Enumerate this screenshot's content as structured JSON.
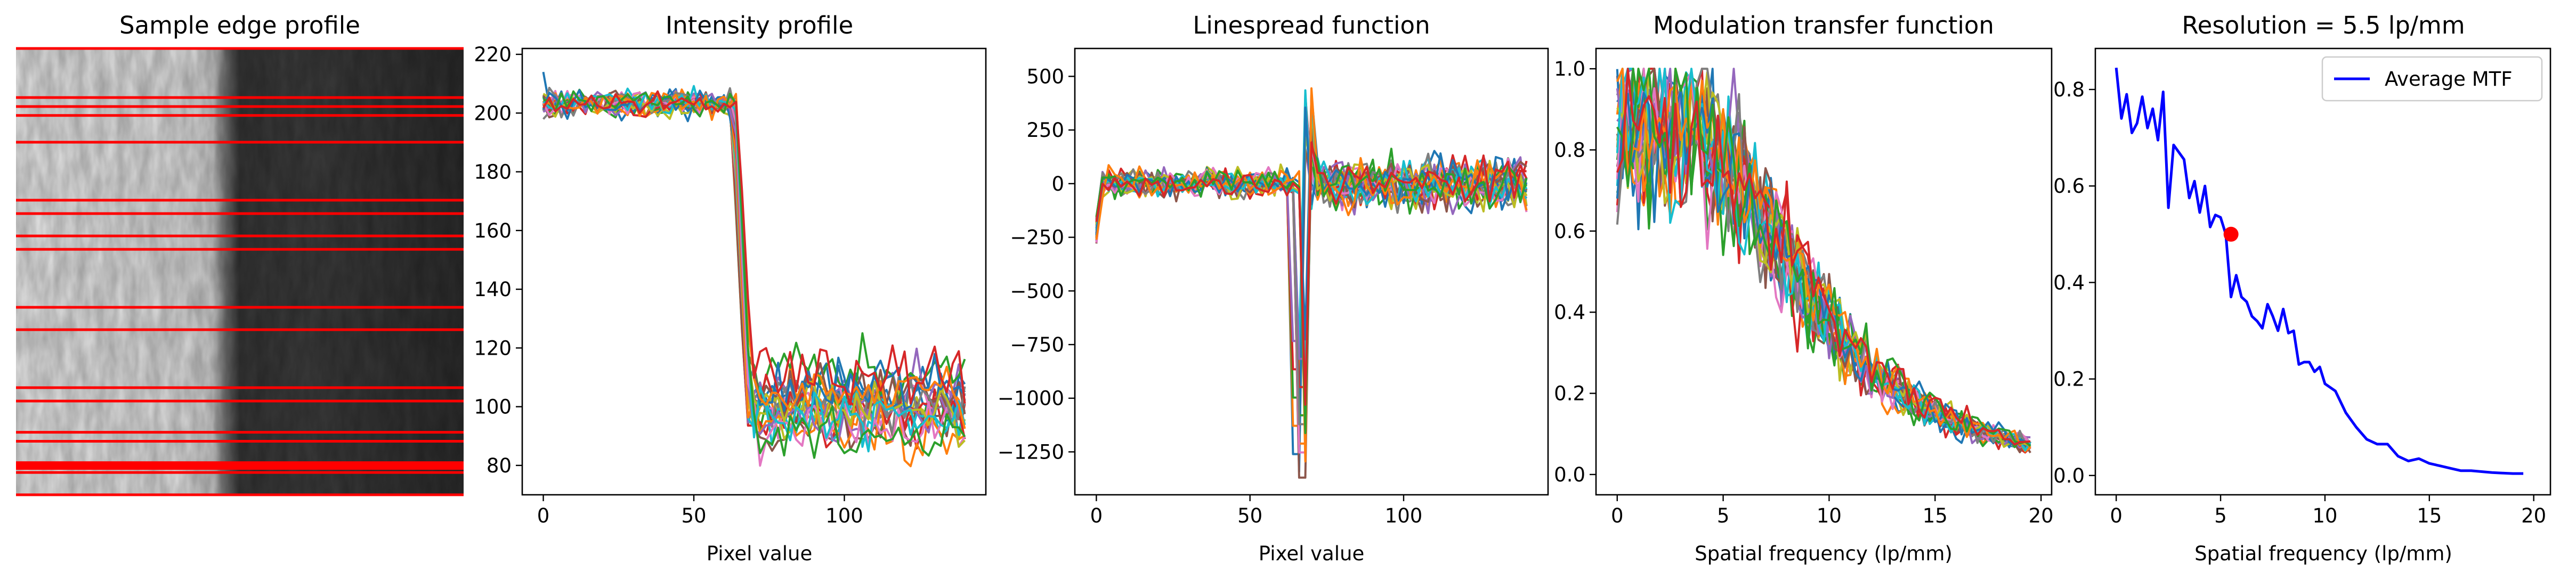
{
  "colors": {
    "cycle": [
      "#1f77b4",
      "#ff7f0e",
      "#2ca02c",
      "#d62728",
      "#9467bd",
      "#8c564b",
      "#e377c2",
      "#7f7f7f",
      "#bcbd22",
      "#17becf"
    ],
    "edge_line": "#ff0000",
    "average_mtf": "#0000ff",
    "resolution_marker": "#ff0000"
  },
  "chart_data": [
    {
      "type": "image",
      "title": "Sample edge profile",
      "description_lines": "grayscale edge image with horizontal red sample lines",
      "sample_line_fractions": [
        0.0,
        0.11,
        0.13,
        0.15,
        0.21,
        0.34,
        0.37,
        0.42,
        0.45,
        0.58,
        0.63,
        0.76,
        0.79,
        0.86,
        0.88,
        0.93,
        0.94,
        0.95,
        1.0
      ]
    },
    {
      "type": "line",
      "title": "Intensity profile",
      "xlabel": "Pixel value",
      "ylabel": "",
      "xlim": [
        -7,
        147
      ],
      "ylim": [
        70,
        222
      ],
      "xticks": [
        "0",
        "50",
        "100"
      ],
      "xtick_values": [
        0,
        50,
        100
      ],
      "yticks": [
        "80",
        "100",
        "120",
        "140",
        "160",
        "180",
        "200",
        "220"
      ],
      "ytick_values": [
        80,
        100,
        120,
        140,
        160,
        180,
        200,
        220
      ],
      "n_series": 24,
      "x_range": [
        0,
        140
      ],
      "high_level": 203,
      "low_level": 100,
      "edge_positions": [
        60,
        75
      ]
    },
    {
      "type": "line",
      "title": "Linespread function",
      "xlabel": "Pixel value",
      "ylabel": "",
      "xlim": [
        -7,
        147
      ],
      "ylim": [
        -1450,
        630
      ],
      "xticks": [
        "0",
        "50",
        "100"
      ],
      "xtick_values": [
        0,
        50,
        100
      ],
      "yticks": [
        "500",
        "250",
        "0",
        "−250",
        "−500",
        "−750",
        "−1000",
        "−1250"
      ],
      "ytick_values": [
        500,
        250,
        0,
        -250,
        -500,
        -750,
        -1000,
        -1250
      ],
      "n_series": 24,
      "peak_min": -1370,
      "peak_max": 500
    },
    {
      "type": "line",
      "title": "Modulation transfer function",
      "xlabel": "Spatial frequency (lp/mm)",
      "ylabel": "",
      "xlim": [
        -1,
        20.5
      ],
      "ylim": [
        -0.05,
        1.05
      ],
      "xticks": [
        "0",
        "5",
        "10",
        "15",
        "20"
      ],
      "xtick_values": [
        0,
        5,
        10,
        15,
        20
      ],
      "yticks": [
        "0.0",
        "0.2",
        "0.4",
        "0.6",
        "0.8",
        "1.0"
      ],
      "ytick_values": [
        0,
        0.2,
        0.4,
        0.6,
        0.8,
        1.0
      ],
      "n_series": 24
    },
    {
      "type": "line",
      "title": "Resolution = 5.5 lp/mm",
      "xlabel": "Spatial frequency (lp/mm)",
      "ylabel": "",
      "xlim": [
        -1,
        20.8
      ],
      "ylim": [
        -0.04,
        0.885
      ],
      "xticks": [
        "0",
        "5",
        "10",
        "15",
        "20"
      ],
      "xtick_values": [
        0,
        5,
        10,
        15,
        20
      ],
      "yticks": [
        "0.0",
        "0.2",
        "0.4",
        "0.6",
        "0.8"
      ],
      "ytick_values": [
        0,
        0.2,
        0.4,
        0.6,
        0.8
      ],
      "legend": "top-right",
      "series": [
        {
          "name": "Average MTF",
          "x": [
            0.0,
            0.25,
            0.5,
            0.75,
            1.0,
            1.25,
            1.5,
            1.75,
            2.0,
            2.25,
            2.5,
            2.75,
            3.0,
            3.25,
            3.5,
            3.75,
            4.0,
            4.25,
            4.5,
            4.75,
            5.0,
            5.25,
            5.5,
            5.75,
            6.0,
            6.25,
            6.5,
            6.75,
            7.0,
            7.25,
            7.5,
            7.75,
            8.0,
            8.25,
            8.5,
            8.75,
            9.0,
            9.25,
            9.5,
            9.75,
            10.0,
            10.5,
            11.0,
            11.5,
            12.0,
            12.5,
            13.0,
            13.5,
            14.0,
            14.5,
            15.0,
            15.5,
            16.0,
            16.5,
            17.0,
            17.5,
            18.0,
            18.5,
            19.0,
            19.5
          ],
          "y": [
            0.845,
            0.74,
            0.79,
            0.71,
            0.73,
            0.785,
            0.72,
            0.76,
            0.695,
            0.795,
            0.555,
            0.685,
            0.67,
            0.655,
            0.575,
            0.61,
            0.545,
            0.6,
            0.515,
            0.54,
            0.535,
            0.5,
            0.37,
            0.415,
            0.37,
            0.36,
            0.33,
            0.32,
            0.305,
            0.355,
            0.33,
            0.3,
            0.345,
            0.295,
            0.3,
            0.23,
            0.235,
            0.235,
            0.215,
            0.225,
            0.19,
            0.175,
            0.13,
            0.1,
            0.075,
            0.065,
            0.065,
            0.04,
            0.03,
            0.035,
            0.025,
            0.02,
            0.015,
            0.01,
            0.01,
            0.008,
            0.006,
            0.005,
            0.004,
            0.004
          ]
        }
      ],
      "marker": {
        "x": 5.5,
        "y": 0.5
      }
    }
  ]
}
